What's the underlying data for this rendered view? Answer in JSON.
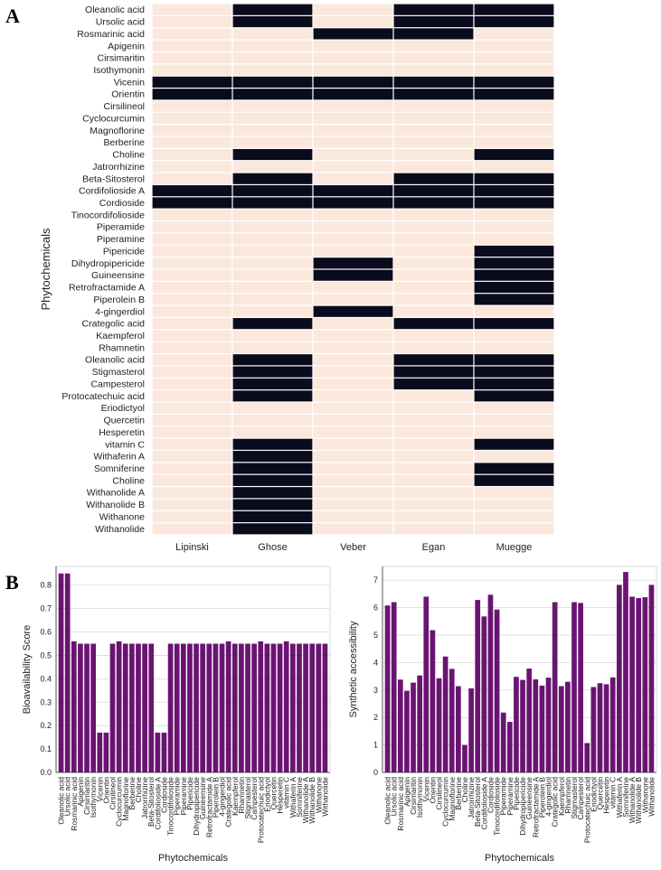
{
  "panels": {
    "a": "A",
    "b": "B"
  },
  "colors": {
    "pass": "#fbe8dc",
    "fail": "#0b0b1e",
    "bar": "#6a1472",
    "grid": "#d9d9d9",
    "axis": "#333333"
  },
  "chart_data": [
    {
      "type": "heatmap",
      "title": "",
      "ylabel": "Phytochemicals",
      "columns": [
        "Lipinski",
        "Ghose",
        "Veber",
        "Egan",
        "Muegge"
      ],
      "rows": [
        "Oleanolic acid",
        "Ursolic acid",
        "Rosmarinic acid",
        "Apigenin",
        "Cirsimaritin",
        "Isothymonin",
        "Vicenin",
        "Orientin",
        "Cirsilineol",
        "Cyclocurcumin",
        "Magnoflorine",
        "Berberine",
        "Choline",
        "Jatrorrhizine",
        "Beta-Sitosterol",
        "Cordifolioside A",
        "Cordioside",
        "Tinocordifolioside",
        "Piperamide",
        "Piperamine",
        "Pipericide",
        "Dihydropipericide",
        "Guineensine",
        "Retrofractamide A",
        "Piperolein B",
        "4-gingerdiol",
        "Crategolic acid",
        "Kaempferol",
        "Rhamnetin",
        "Oleanolic acid",
        "Stigmasterol",
        "Campesterol",
        "Protocatechuic acid",
        "Eriodictyol",
        "Quercetin",
        "Hesperetin",
        "vitamin C",
        "Withaferin A",
        "Somniferine",
        "Choline",
        "Withanolide A",
        "Withanolide B",
        "Withanone",
        "Withanolide"
      ],
      "values": [
        [
          0,
          1,
          0,
          1,
          1
        ],
        [
          0,
          1,
          0,
          1,
          1
        ],
        [
          0,
          0,
          1,
          1,
          0
        ],
        [
          0,
          0,
          0,
          0,
          0
        ],
        [
          0,
          0,
          0,
          0,
          0
        ],
        [
          0,
          0,
          0,
          0,
          0
        ],
        [
          1,
          1,
          1,
          1,
          1
        ],
        [
          1,
          1,
          1,
          1,
          1
        ],
        [
          0,
          0,
          0,
          0,
          0
        ],
        [
          0,
          0,
          0,
          0,
          0
        ],
        [
          0,
          0,
          0,
          0,
          0
        ],
        [
          0,
          0,
          0,
          0,
          0
        ],
        [
          0,
          1,
          0,
          0,
          1
        ],
        [
          0,
          0,
          0,
          0,
          0
        ],
        [
          0,
          1,
          0,
          1,
          1
        ],
        [
          1,
          1,
          1,
          1,
          1
        ],
        [
          1,
          1,
          1,
          1,
          1
        ],
        [
          0,
          0,
          0,
          0,
          0
        ],
        [
          0,
          0,
          0,
          0,
          0
        ],
        [
          0,
          0,
          0,
          0,
          0
        ],
        [
          0,
          0,
          0,
          0,
          1
        ],
        [
          0,
          0,
          1,
          0,
          1
        ],
        [
          0,
          0,
          1,
          0,
          1
        ],
        [
          0,
          0,
          0,
          0,
          1
        ],
        [
          0,
          0,
          0,
          0,
          1
        ],
        [
          0,
          0,
          1,
          0,
          0
        ],
        [
          0,
          1,
          0,
          1,
          1
        ],
        [
          0,
          0,
          0,
          0,
          0
        ],
        [
          0,
          0,
          0,
          0,
          0
        ],
        [
          0,
          1,
          0,
          1,
          1
        ],
        [
          0,
          1,
          0,
          1,
          1
        ],
        [
          0,
          1,
          0,
          1,
          1
        ],
        [
          0,
          1,
          0,
          0,
          1
        ],
        [
          0,
          0,
          0,
          0,
          0
        ],
        [
          0,
          0,
          0,
          0,
          0
        ],
        [
          0,
          0,
          0,
          0,
          0
        ],
        [
          0,
          1,
          0,
          0,
          1
        ],
        [
          0,
          1,
          0,
          0,
          0
        ],
        [
          0,
          1,
          0,
          0,
          1
        ],
        [
          0,
          1,
          0,
          0,
          1
        ],
        [
          0,
          1,
          0,
          0,
          0
        ],
        [
          0,
          1,
          0,
          0,
          0
        ],
        [
          0,
          1,
          0,
          0,
          0
        ],
        [
          0,
          1,
          0,
          0,
          0
        ]
      ]
    },
    {
      "type": "bar",
      "title": "",
      "xlabel": "Phytochemicals",
      "ylabel": "Bioavailability Score",
      "ylim": [
        0,
        0.88
      ],
      "yticks": [
        0.0,
        0.1,
        0.2,
        0.3,
        0.4,
        0.5,
        0.6,
        0.7,
        0.8
      ],
      "ytick_labels": [
        "0.0",
        "0.1",
        "0.2",
        "0.3",
        "0.4",
        "0.5",
        "0.6",
        "0.7",
        "0.8"
      ],
      "grid": true,
      "categories": [
        "Oleanolic acid",
        "Ursolic acid",
        "Rosmarinic acid",
        "Apigenin",
        "Cirsimaritin",
        "Isothymonin",
        "Vicenin",
        "Orientin",
        "Cirsilineol",
        "Cyclocurcumin",
        "Magnoflorine",
        "Berberine",
        "Choline",
        "Jatrorrhizine",
        "Beta-Sitosterol",
        "Cordifolioside A",
        "Cordioside",
        "Tinocordifolioside",
        "Piperamide",
        "Piperamine",
        "Pipericide",
        "Dihydropipericide",
        "Guineensine",
        "Retrofractamide A",
        "Piperolein B",
        "4-gingerdiol",
        "Crategolic acid",
        "Kaempferol",
        "Rhamnetin",
        "Stigmasterol",
        "Campesterol",
        "Protocatechuic acid",
        "Eriodictyol",
        "Quercetin",
        "Hesperetin",
        "vitamin C",
        "Withaferin A",
        "Somniferine",
        "Withanolide A",
        "Withanolide B",
        "Withanone",
        "Withanolide"
      ],
      "values": [
        0.85,
        0.85,
        0.56,
        0.55,
        0.55,
        0.55,
        0.17,
        0.17,
        0.55,
        0.56,
        0.55,
        0.55,
        0.55,
        0.55,
        0.55,
        0.17,
        0.17,
        0.55,
        0.55,
        0.55,
        0.55,
        0.55,
        0.55,
        0.55,
        0.55,
        0.55,
        0.56,
        0.55,
        0.55,
        0.55,
        0.55,
        0.56,
        0.55,
        0.55,
        0.55,
        0.56,
        0.55,
        0.55,
        0.55,
        0.55,
        0.55,
        0.55
      ]
    },
    {
      "type": "bar",
      "title": "",
      "xlabel": "Phytochemicals",
      "ylabel": "Synthetic accessibility",
      "ylim": [
        0,
        7.5
      ],
      "yticks": [
        0,
        1,
        2,
        3,
        4,
        5,
        6,
        7
      ],
      "ytick_labels": [
        "0",
        "1",
        "2",
        "3",
        "4",
        "5",
        "6",
        "7"
      ],
      "grid": true,
      "categories": [
        "Oleanolic acid",
        "Ursolic acid",
        "Rosmarinic acid",
        "Apigenin",
        "Cirsimaritin",
        "Isothymonin",
        "Vicenin",
        "Orientin",
        "Cirsilineol",
        "Cyclocurcumin",
        "Magnoflorine",
        "Berberine",
        "Choline",
        "Jatrorrhizine",
        "Beta-Sitosterol",
        "Cordifolioside A",
        "Cordioside",
        "Tinocordifolioside",
        "Piperamide",
        "Piperamine",
        "Pipericide",
        "Dihydropipericide",
        "Guineensine",
        "Retrofractamide A",
        "Piperolein B",
        "4-gingerdiol",
        "Crategolic acid",
        "Kaempferol",
        "Rhamnetin",
        "Stigmasterol",
        "Campesterol",
        "Protocatechuic acid",
        "Eriodictyol",
        "Quercetin",
        "Hesperetin",
        "vitamin C",
        "Withaferin A",
        "Somniferine",
        "Withanolide A",
        "Withanolide B",
        "Withanone",
        "Withanolide"
      ],
      "values": [
        6.08,
        6.2,
        3.38,
        2.97,
        3.27,
        3.53,
        6.4,
        5.18,
        3.43,
        4.22,
        3.77,
        3.14,
        1.0,
        3.06,
        6.28,
        5.68,
        6.47,
        5.93,
        2.18,
        1.84,
        3.48,
        3.37,
        3.78,
        3.39,
        3.16,
        3.45,
        6.2,
        3.14,
        3.3,
        6.2,
        6.17,
        1.07,
        3.11,
        3.25,
        3.21,
        3.46,
        6.83,
        7.3,
        6.4,
        6.35,
        6.38,
        6.83
      ]
    }
  ]
}
